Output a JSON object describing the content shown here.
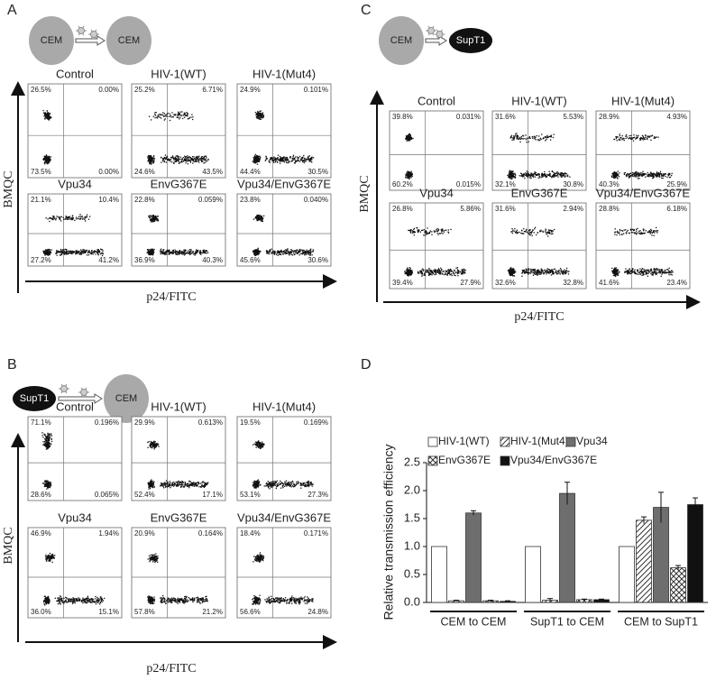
{
  "panels": [
    {
      "label": "A",
      "cells": [
        "CEM",
        "CEM"
      ],
      "y_label": "BMQC",
      "x_label": "p24/FITC",
      "plots": [
        {
          "title": "Control",
          "quadrants": [
            "26.5%",
            "0.00%",
            "73.5%",
            "0.00%"
          ]
        },
        {
          "title": "HIV-1(WT)",
          "quadrants": [
            "25.2%",
            "6.71%",
            "24.6%",
            "43.5%"
          ]
        },
        {
          "title": "HIV-1(Mut4)",
          "quadrants": [
            "24.9%",
            "0.101%",
            "44.4%",
            "30.5%"
          ]
        },
        {
          "title": "Vpu34",
          "quadrants": [
            "21.1%",
            "10.4%",
            "27.2%",
            "41.2%"
          ]
        },
        {
          "title": "EnvG367E",
          "quadrants": [
            "22.8%",
            "0.059%",
            "36.9%",
            "40.3%"
          ]
        },
        {
          "title": "Vpu34/EnvG367E",
          "quadrants": [
            "23.8%",
            "0.040%",
            "45.6%",
            "30.6%"
          ]
        }
      ]
    },
    {
      "label": "B",
      "cells": [
        "SupT1",
        "CEM"
      ],
      "y_label": "BMQC",
      "x_label": "p24/FITC",
      "plots": [
        {
          "title": "Control",
          "quadrants": [
            "71.1%",
            "0.196%",
            "28.6%",
            "0.065%"
          ]
        },
        {
          "title": "HIV-1(WT)",
          "quadrants": [
            "29.9%",
            "0.613%",
            "52.4%",
            "17.1%"
          ]
        },
        {
          "title": "HIV-1(Mut4)",
          "quadrants": [
            "19.5%",
            "0.169%",
            "53.1%",
            "27.3%"
          ]
        },
        {
          "title": "Vpu34",
          "quadrants": [
            "46.9%",
            "1.94%",
            "36.0%",
            "15.1%"
          ]
        },
        {
          "title": "EnvG367E",
          "quadrants": [
            "20.9%",
            "0.164%",
            "57.8%",
            "21.2%"
          ]
        },
        {
          "title": "Vpu34/EnvG367E",
          "quadrants": [
            "18.4%",
            "0.171%",
            "56.6%",
            "24.8%"
          ]
        }
      ]
    },
    {
      "label": "C",
      "cells": [
        "CEM",
        "SupT1"
      ],
      "y_label": "BMQC",
      "x_label": "p24/FITC",
      "plots": [
        {
          "title": "Control",
          "quadrants": [
            "39.8%",
            "0.031%",
            "60.2%",
            "0.015%"
          ]
        },
        {
          "title": "HIV-1(WT)",
          "quadrants": [
            "31.6%",
            "5.53%",
            "32.1%",
            "30.8%"
          ]
        },
        {
          "title": "HIV-1(Mut4)",
          "quadrants": [
            "28.9%",
            "4.93%",
            "40.3%",
            "25.9%"
          ]
        },
        {
          "title": "Vpu34",
          "quadrants": [
            "26.8%",
            "5.86%",
            "39.4%",
            "27.9%"
          ]
        },
        {
          "title": "EnvG367E",
          "quadrants": [
            "31.6%",
            "2.94%",
            "32.6%",
            "32.8%"
          ]
        },
        {
          "title": "Vpu34/EnvG367E",
          "quadrants": [
            "28.8%",
            "6.18%",
            "41.6%",
            "23.4%"
          ]
        }
      ]
    }
  ],
  "chart_data": {
    "type": "bar",
    "label": "D",
    "y_label": "Relative transmission efficiency",
    "categories": [
      "CEM to CEM",
      "SupT1 to CEM",
      "CEM to SupT1"
    ],
    "ylim": [
      0,
      2.5
    ],
    "yticks": [
      {
        "value": 0,
        "label": "0.0"
      },
      0.5,
      {
        "value": 1,
        "label": "1.0"
      },
      1.5,
      {
        "value": 2,
        "label": "2.0"
      },
      2.5
    ],
    "series": [
      {
        "name": "HIV-1(WT)",
        "color": "#ffffff",
        "pattern": "solid",
        "values": [
          1,
          1,
          1
        ],
        "errors": [
          0,
          0,
          0
        ]
      },
      {
        "name": "HIV-1(Mut4)",
        "color": "#ffffff",
        "pattern": "hatch",
        "values": [
          0.03,
          0.04,
          1.47
        ],
        "errors": [
          0.01,
          0.03,
          0.06
        ]
      },
      {
        "name": "Vpu34",
        "color": "#6e6e6e",
        "pattern": "solid",
        "values": [
          1.6,
          1.95,
          1.7
        ],
        "errors": [
          0.04,
          0.2,
          0.27
        ]
      },
      {
        "name": "EnvG367E",
        "color": "#ffffff",
        "pattern": "crosshatch",
        "values": [
          0.03,
          0.05,
          0.62
        ],
        "errors": [
          0.01,
          0.01,
          0.04
        ]
      },
      {
        "name": "Vpu34/EnvG367E",
        "color": "#111111",
        "pattern": "solid",
        "values": [
          0.02,
          0.05,
          1.75
        ],
        "errors": [
          0.01,
          0.01,
          0.12
        ]
      }
    ]
  }
}
